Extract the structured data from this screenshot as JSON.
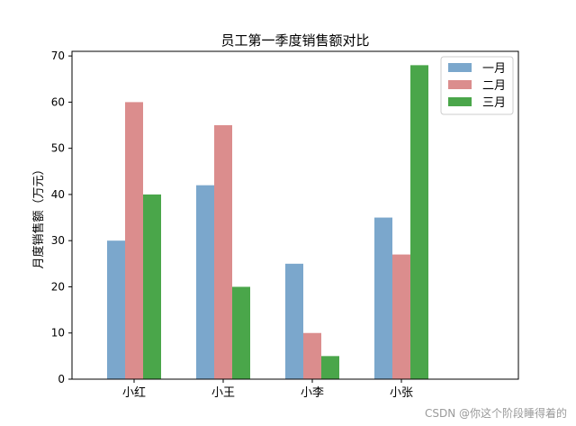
{
  "chart_data": {
    "type": "bar",
    "title": "员工第一季度销售额对比",
    "xlabel": "",
    "ylabel": "月度销售额（万元）",
    "categories": [
      "小红",
      "小王",
      "小李",
      "小张"
    ],
    "series": [
      {
        "name": "一月",
        "color": "#7ba7cc",
        "values": [
          30,
          42,
          25,
          35
        ]
      },
      {
        "name": "二月",
        "color": "#db8d8d",
        "values": [
          60,
          55,
          10,
          27
        ]
      },
      {
        "name": "三月",
        "color": "#4aa64a",
        "values": [
          40,
          20,
          5,
          68
        ]
      }
    ],
    "ylim": [
      0,
      71
    ],
    "yticks": [
      0,
      10,
      20,
      30,
      40,
      50,
      60,
      70
    ],
    "legend_position": "top-right",
    "grid": false
  },
  "watermark": "CSDN @你这个阶段睡得着的"
}
